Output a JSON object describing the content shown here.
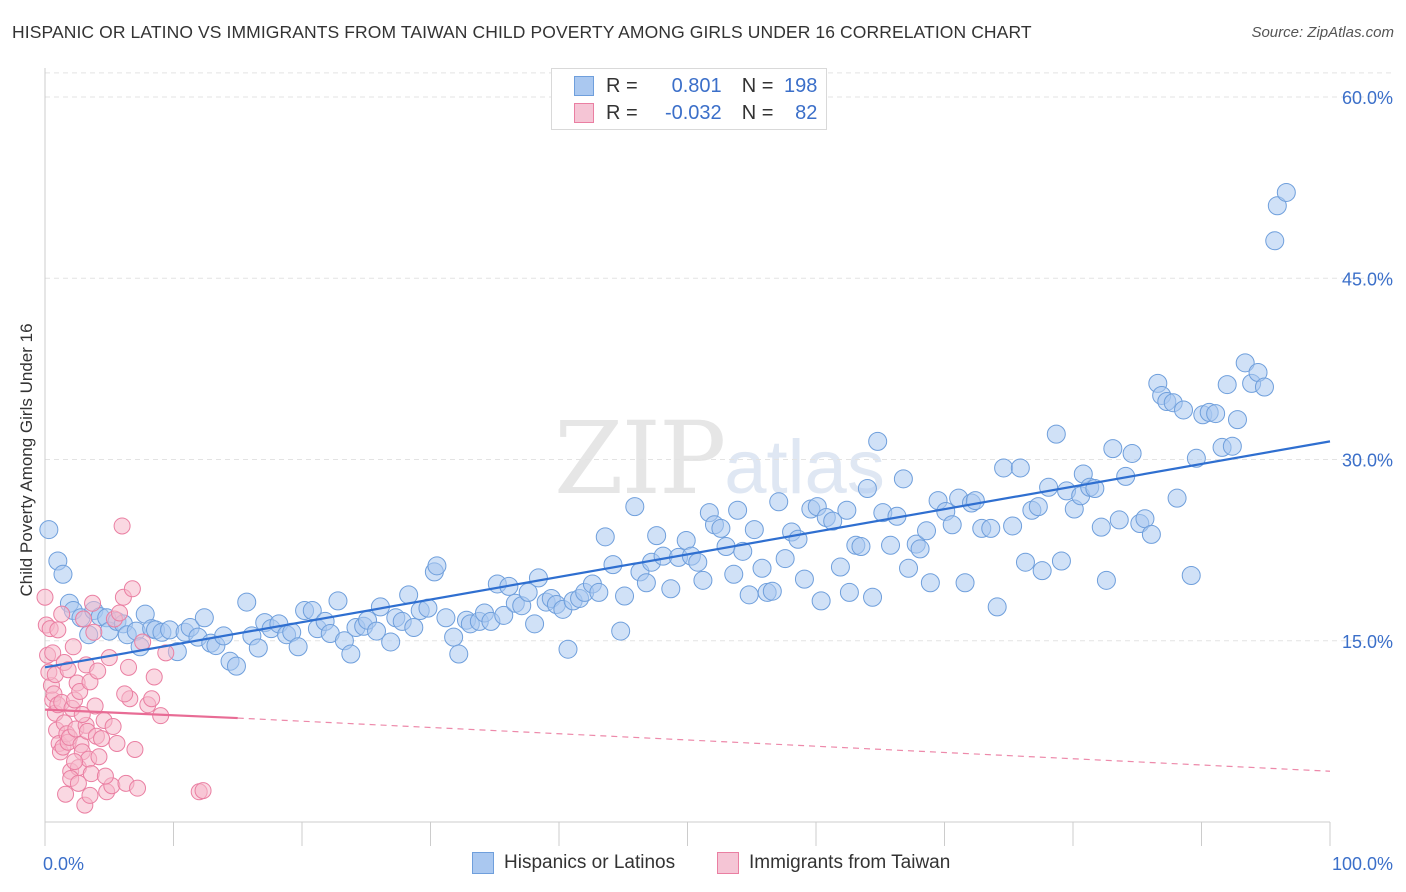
{
  "title": "HISPANIC OR LATINO VS IMMIGRANTS FROM TAIWAN CHILD POVERTY AMONG GIRLS UNDER 16 CORRELATION CHART",
  "source": "Source: ZipAtlas.com",
  "watermark": {
    "zip": "ZIP",
    "atlas": "atlas"
  },
  "colors": {
    "blue_fill": "#aac8f0",
    "blue_stroke": "#6f9fdc",
    "blue_line": "#2f6fd0",
    "pink_fill": "#f5b8cb",
    "pink_stroke": "#ea7fa2",
    "pink_line": "#e86c95",
    "axis_text": "#3b6fc9",
    "grid": "#e3e3e3"
  },
  "legend": {
    "rows": [
      {
        "r_label": "R =",
        "r_value": "0.801",
        "n_label": "N =",
        "n_value": "198",
        "color": "blue"
      },
      {
        "r_label": "R =",
        "r_value": "-0.032",
        "n_label": "N =",
        "n_value": "82",
        "color": "pink"
      }
    ]
  },
  "bottom_legend": [
    {
      "label": "Hispanics or Latinos",
      "color": "blue"
    },
    {
      "label": "Immigrants from Taiwan",
      "color": "pink"
    }
  ],
  "chart_data": {
    "type": "scatter",
    "title": "HISPANIC OR LATINO VS IMMIGRANTS FROM TAIWAN CHILD POVERTY AMONG GIRLS UNDER 16 CORRELATION CHART",
    "xlabel": "",
    "ylabel": "Child Poverty Among Girls Under 16",
    "xlim": [
      0,
      100
    ],
    "ylim": [
      0,
      62
    ],
    "x_tick_labels": [
      "0.0%",
      "100.0%"
    ],
    "y_ticks": [
      15,
      30,
      45,
      60
    ],
    "y_tick_labels": [
      "15.0%",
      "30.0%",
      "45.0%",
      "60.0%"
    ],
    "grid": true,
    "series": [
      {
        "name": "Hispanics or Latinos",
        "color": "blue",
        "trend": {
          "x": [
            0,
            100
          ],
          "y": [
            12.8,
            31.5
          ],
          "style": "solid"
        },
        "points": [
          [
            0.3,
            24.2
          ],
          [
            1.0,
            21.6
          ],
          [
            1.4,
            20.5
          ],
          [
            1.9,
            18.1
          ],
          [
            2.2,
            17.5
          ],
          [
            2.8,
            16.9
          ],
          [
            3.4,
            15.5
          ],
          [
            3.8,
            17.5
          ],
          [
            4.3,
            17.0
          ],
          [
            4.8,
            16.9
          ],
          [
            5.0,
            15.8
          ],
          [
            5.6,
            16.6
          ],
          [
            6.1,
            16.4
          ],
          [
            6.4,
            15.5
          ],
          [
            7.1,
            15.8
          ],
          [
            7.4,
            14.5
          ],
          [
            7.8,
            17.2
          ],
          [
            8.3,
            16.0
          ],
          [
            8.6,
            15.9
          ],
          [
            9.1,
            15.7
          ],
          [
            9.7,
            15.9
          ],
          [
            10.3,
            14.1
          ],
          [
            10.9,
            15.7
          ],
          [
            11.3,
            16.1
          ],
          [
            11.9,
            15.3
          ],
          [
            12.4,
            16.9
          ],
          [
            12.9,
            14.8
          ],
          [
            13.3,
            14.6
          ],
          [
            13.9,
            15.4
          ],
          [
            14.4,
            13.3
          ],
          [
            14.9,
            12.9
          ],
          [
            15.7,
            18.2
          ],
          [
            16.1,
            15.4
          ],
          [
            16.6,
            14.4
          ],
          [
            17.1,
            16.5
          ],
          [
            17.6,
            16.0
          ],
          [
            18.2,
            16.4
          ],
          [
            18.8,
            15.5
          ],
          [
            19.2,
            15.7
          ],
          [
            19.7,
            14.5
          ],
          [
            20.2,
            17.5
          ],
          [
            20.8,
            17.5
          ],
          [
            21.2,
            16.0
          ],
          [
            21.8,
            16.6
          ],
          [
            22.2,
            15.6
          ],
          [
            22.8,
            18.3
          ],
          [
            23.3,
            15.0
          ],
          [
            23.8,
            13.9
          ],
          [
            24.2,
            16.1
          ],
          [
            24.8,
            16.2
          ],
          [
            25.1,
            16.7
          ],
          [
            25.8,
            15.8
          ],
          [
            26.1,
            17.8
          ],
          [
            26.9,
            14.9
          ],
          [
            27.3,
            16.9
          ],
          [
            27.8,
            16.6
          ],
          [
            28.3,
            18.8
          ],
          [
            28.7,
            16.1
          ],
          [
            29.2,
            17.5
          ],
          [
            29.8,
            17.7
          ],
          [
            30.3,
            20.7
          ],
          [
            30.5,
            21.2
          ],
          [
            31.2,
            16.9
          ],
          [
            31.8,
            15.3
          ],
          [
            32.2,
            13.9
          ],
          [
            32.8,
            16.7
          ],
          [
            33.1,
            16.4
          ],
          [
            33.8,
            16.6
          ],
          [
            34.2,
            17.3
          ],
          [
            34.7,
            16.6
          ],
          [
            35.2,
            19.7
          ],
          [
            35.7,
            17.1
          ],
          [
            36.1,
            19.5
          ],
          [
            36.6,
            18.1
          ],
          [
            37.1,
            17.9
          ],
          [
            37.6,
            19.0
          ],
          [
            38.1,
            16.4
          ],
          [
            38.4,
            20.2
          ],
          [
            39.0,
            18.2
          ],
          [
            39.4,
            18.5
          ],
          [
            39.8,
            18.0
          ],
          [
            40.3,
            17.6
          ],
          [
            40.7,
            14.3
          ],
          [
            41.1,
            18.3
          ],
          [
            41.6,
            18.5
          ],
          [
            42.0,
            19.0
          ],
          [
            42.6,
            19.7
          ],
          [
            43.1,
            19.0
          ],
          [
            43.6,
            23.6
          ],
          [
            44.2,
            21.3
          ],
          [
            44.8,
            15.8
          ],
          [
            45.1,
            18.7
          ],
          [
            45.9,
            26.1
          ],
          [
            46.3,
            20.7
          ],
          [
            46.8,
            19.8
          ],
          [
            47.2,
            21.5
          ],
          [
            47.6,
            23.7
          ],
          [
            48.1,
            22.0
          ],
          [
            48.7,
            19.3
          ],
          [
            49.3,
            21.9
          ],
          [
            49.9,
            23.3
          ],
          [
            50.3,
            22.0
          ],
          [
            50.8,
            21.5
          ],
          [
            51.2,
            20.0
          ],
          [
            51.7,
            25.6
          ],
          [
            52.1,
            24.6
          ],
          [
            52.6,
            24.3
          ],
          [
            53.0,
            22.8
          ],
          [
            53.6,
            20.5
          ],
          [
            53.9,
            25.8
          ],
          [
            54.3,
            22.4
          ],
          [
            54.8,
            18.8
          ],
          [
            55.2,
            24.2
          ],
          [
            55.8,
            21.0
          ],
          [
            56.2,
            19.0
          ],
          [
            56.6,
            19.1
          ],
          [
            57.1,
            26.5
          ],
          [
            57.6,
            21.8
          ],
          [
            58.1,
            24.0
          ],
          [
            58.6,
            23.4
          ],
          [
            59.1,
            20.1
          ],
          [
            59.6,
            25.9
          ],
          [
            60.1,
            26.1
          ],
          [
            60.4,
            18.3
          ],
          [
            60.8,
            25.2
          ],
          [
            61.3,
            24.9
          ],
          [
            61.9,
            21.1
          ],
          [
            62.4,
            25.8
          ],
          [
            62.6,
            19.0
          ],
          [
            63.1,
            22.9
          ],
          [
            63.5,
            22.8
          ],
          [
            64.0,
            27.6
          ],
          [
            64.4,
            18.6
          ],
          [
            64.8,
            31.5
          ],
          [
            65.2,
            25.6
          ],
          [
            65.8,
            22.9
          ],
          [
            66.3,
            25.3
          ],
          [
            66.8,
            28.4
          ],
          [
            67.2,
            21.0
          ],
          [
            67.8,
            23.0
          ],
          [
            68.1,
            22.6
          ],
          [
            68.6,
            24.1
          ],
          [
            68.9,
            19.8
          ],
          [
            69.5,
            26.6
          ],
          [
            70.1,
            25.7
          ],
          [
            70.6,
            24.6
          ],
          [
            71.1,
            26.8
          ],
          [
            71.6,
            19.8
          ],
          [
            72.1,
            26.4
          ],
          [
            72.4,
            26.6
          ],
          [
            72.9,
            24.3
          ],
          [
            73.6,
            24.3
          ],
          [
            74.1,
            17.8
          ],
          [
            74.6,
            29.3
          ],
          [
            75.3,
            24.5
          ],
          [
            75.9,
            29.3
          ],
          [
            76.3,
            21.5
          ],
          [
            76.8,
            25.8
          ],
          [
            77.3,
            26.1
          ],
          [
            77.6,
            20.8
          ],
          [
            78.1,
            27.7
          ],
          [
            78.7,
            32.1
          ],
          [
            79.1,
            21.6
          ],
          [
            79.5,
            27.4
          ],
          [
            80.1,
            25.9
          ],
          [
            80.6,
            27.0
          ],
          [
            80.8,
            28.8
          ],
          [
            81.3,
            27.7
          ],
          [
            81.7,
            27.6
          ],
          [
            82.2,
            24.4
          ],
          [
            82.6,
            20.0
          ],
          [
            83.1,
            30.9
          ],
          [
            83.6,
            25.0
          ],
          [
            84.1,
            28.6
          ],
          [
            84.6,
            30.5
          ],
          [
            85.2,
            24.7
          ],
          [
            85.6,
            25.1
          ],
          [
            86.1,
            23.8
          ],
          [
            86.6,
            36.3
          ],
          [
            86.9,
            35.3
          ],
          [
            87.3,
            34.8
          ],
          [
            87.8,
            34.7
          ],
          [
            88.1,
            26.8
          ],
          [
            88.6,
            34.1
          ],
          [
            89.2,
            20.4
          ],
          [
            89.6,
            30.1
          ],
          [
            90.1,
            33.7
          ],
          [
            90.6,
            33.9
          ],
          [
            91.1,
            33.8
          ],
          [
            91.6,
            31.0
          ],
          [
            92.0,
            36.2
          ],
          [
            92.4,
            31.1
          ],
          [
            92.8,
            33.3
          ],
          [
            93.4,
            38.0
          ],
          [
            93.9,
            36.3
          ],
          [
            94.4,
            37.2
          ],
          [
            94.9,
            36.0
          ],
          [
            95.7,
            48.1
          ],
          [
            95.9,
            51.0
          ],
          [
            96.6,
            52.1
          ]
        ]
      },
      {
        "name": "Immigrants from Taiwan",
        "color": "pink",
        "trend": {
          "x": [
            0,
            15
          ],
          "y": [
            9.3,
            8.6
          ],
          "style": "solid",
          "extension": {
            "x": [
              15,
              100
            ],
            "y": [
              8.6,
              4.2
            ],
            "style": "dashed"
          }
        },
        "points": [
          [
            0.0,
            18.6
          ],
          [
            0.1,
            16.3
          ],
          [
            0.2,
            13.8
          ],
          [
            0.4,
            16.0
          ],
          [
            0.5,
            11.3
          ],
          [
            0.6,
            10.1
          ],
          [
            0.7,
            10.6
          ],
          [
            0.8,
            9.0
          ],
          [
            0.9,
            7.6
          ],
          [
            1.0,
            9.7
          ],
          [
            1.1,
            6.5
          ],
          [
            1.2,
            5.8
          ],
          [
            1.3,
            9.9
          ],
          [
            1.4,
            6.2
          ],
          [
            1.5,
            8.2
          ],
          [
            1.6,
            2.3
          ],
          [
            1.7,
            7.3
          ],
          [
            1.8,
            6.6
          ],
          [
            1.9,
            7.0
          ],
          [
            2.0,
            4.2
          ],
          [
            2.1,
            9.4
          ],
          [
            2.2,
            14.5
          ],
          [
            2.3,
            10.1
          ],
          [
            2.4,
            7.7
          ],
          [
            2.5,
            11.5
          ],
          [
            2.6,
            4.5
          ],
          [
            2.7,
            10.8
          ],
          [
            2.8,
            6.4
          ],
          [
            2.9,
            5.8
          ],
          [
            3.0,
            16.8
          ],
          [
            3.1,
            1.4
          ],
          [
            3.2,
            8.0
          ],
          [
            3.3,
            7.5
          ],
          [
            3.4,
            5.2
          ],
          [
            3.5,
            11.6
          ],
          [
            3.6,
            4.0
          ],
          [
            3.7,
            18.1
          ],
          [
            3.8,
            15.7
          ],
          [
            3.9,
            9.6
          ],
          [
            4.0,
            7.1
          ],
          [
            4.2,
            5.4
          ],
          [
            4.4,
            6.9
          ],
          [
            4.6,
            8.4
          ],
          [
            4.8,
            2.5
          ],
          [
            5.0,
            13.6
          ],
          [
            5.2,
            3.0
          ],
          [
            5.4,
            16.8
          ],
          [
            5.6,
            6.5
          ],
          [
            5.8,
            17.3
          ],
          [
            6.0,
            24.5
          ],
          [
            6.1,
            18.6
          ],
          [
            6.3,
            3.2
          ],
          [
            6.5,
            12.8
          ],
          [
            6.6,
            10.2
          ],
          [
            6.8,
            19.3
          ],
          [
            7.0,
            6.0
          ],
          [
            7.2,
            2.8
          ],
          [
            7.6,
            14.9
          ],
          [
            8.0,
            9.7
          ],
          [
            8.3,
            10.2
          ],
          [
            8.5,
            12.0
          ],
          [
            9.0,
            8.8
          ],
          [
            9.4,
            14.0
          ],
          [
            12.0,
            2.5
          ],
          [
            12.3,
            2.6
          ],
          [
            0.3,
            12.4
          ],
          [
            0.6,
            14.0
          ],
          [
            0.8,
            12.2
          ],
          [
            1.0,
            15.9
          ],
          [
            1.3,
            17.2
          ],
          [
            1.5,
            13.2
          ],
          [
            1.8,
            12.6
          ],
          [
            2.0,
            3.6
          ],
          [
            2.3,
            5.0
          ],
          [
            2.6,
            3.2
          ],
          [
            2.9,
            8.9
          ],
          [
            3.2,
            13.0
          ],
          [
            3.5,
            2.2
          ],
          [
            4.1,
            12.5
          ],
          [
            4.7,
            3.8
          ],
          [
            5.3,
            7.9
          ],
          [
            6.2,
            10.6
          ]
        ]
      }
    ]
  }
}
